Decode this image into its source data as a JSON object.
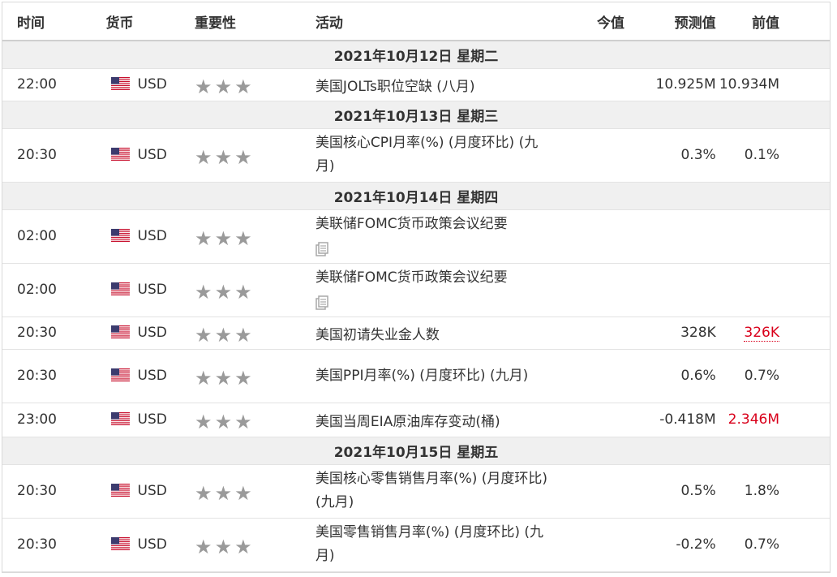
{
  "headers": {
    "time": "时间",
    "currency": "货币",
    "importance": "重要性",
    "event": "活动",
    "actual": "今值",
    "forecast": "预测值",
    "previous": "前值"
  },
  "stars": "★★★",
  "colors": {
    "star": "#9a9a9a",
    "red_value": "#d9001b",
    "date_row_bg": "#f0f0f0"
  },
  "icons": {
    "flag": "us-flag-icon",
    "doc": "document-icon"
  },
  "dates": {
    "d1": "2021年10月12日  星期二",
    "d2": "2021年10月13日  星期三",
    "d3": "2021年10月14日  星期四",
    "d4": "2021年10月15日  星期五"
  },
  "rows": [
    {
      "time": "22:00",
      "currency": "USD",
      "event": "美国JOLTs职位空缺 (八月)",
      "actual": "",
      "forecast": "10.925M",
      "previous": "10.934M"
    },
    {
      "time": "20:30",
      "currency": "USD",
      "event": "美国核心CPI月率(%) (月度环比) (九月)",
      "actual": "",
      "forecast": "0.3%",
      "previous": "0.1%"
    },
    {
      "time": "02:00",
      "currency": "USD",
      "event": "美联储FOMC货币政策会议纪要",
      "actual": "",
      "forecast": "",
      "previous": ""
    },
    {
      "time": "02:00",
      "currency": "USD",
      "event": "美联储FOMC货币政策会议纪要",
      "actual": "",
      "forecast": "",
      "previous": ""
    },
    {
      "time": "20:30",
      "currency": "USD",
      "event": "美国初请失业金人数",
      "actual": "",
      "forecast": "328K",
      "previous": "326K"
    },
    {
      "time": "20:30",
      "currency": "USD",
      "event": "美国PPI月率(%) (月度环比) (九月)",
      "actual": "",
      "forecast": "0.6%",
      "previous": "0.7%"
    },
    {
      "time": "23:00",
      "currency": "USD",
      "event": "美国当周EIA原油库存变动(桶)",
      "actual": "",
      "forecast": "-0.418M",
      "previous": "2.346M"
    },
    {
      "time": "20:30",
      "currency": "USD",
      "event": "美国核心零售销售月率(%) (月度环比) (九月)",
      "actual": "",
      "forecast": "0.5%",
      "previous": "1.8%"
    },
    {
      "time": "20:30",
      "currency": "USD",
      "event": "美国零售销售月率(%) (月度环比) (九月)",
      "actual": "",
      "forecast": "-0.2%",
      "previous": "0.7%"
    }
  ]
}
